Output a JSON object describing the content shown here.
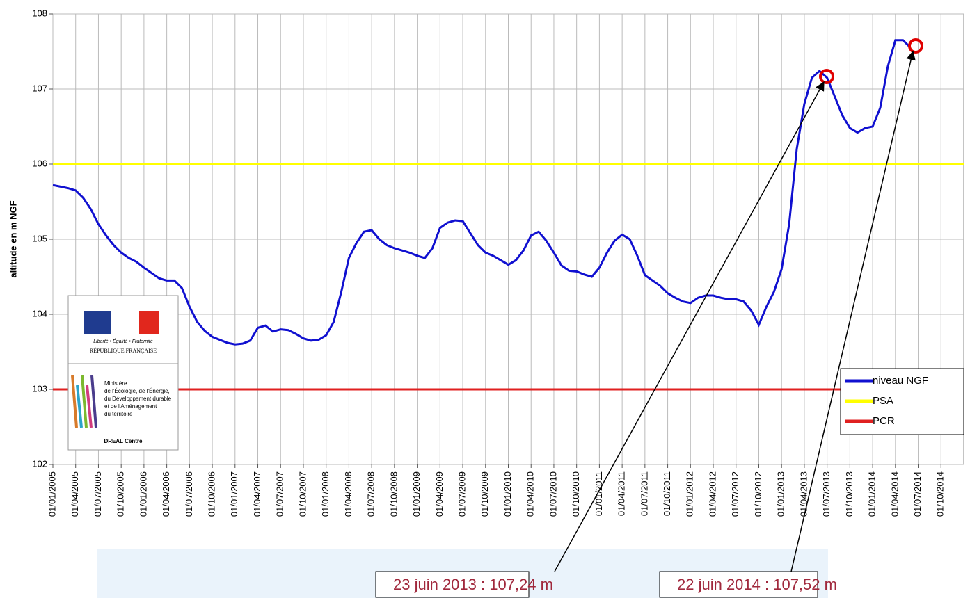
{
  "chart_data": {
    "type": "line",
    "ylabel": "altitude en m NGF",
    "ylim": [
      102,
      108
    ],
    "yticks": [
      102,
      103,
      104,
      105,
      106,
      107,
      108
    ],
    "xlim": [
      "01/01/2005",
      "01/01/2015"
    ],
    "xticks": [
      "01/01/2005",
      "01/04/2005",
      "01/07/2005",
      "01/10/2005",
      "01/01/2006",
      "01/04/2006",
      "01/07/2006",
      "01/10/2006",
      "01/01/2007",
      "01/04/2007",
      "01/07/2007",
      "01/10/2007",
      "01/01/2008",
      "01/04/2008",
      "01/07/2008",
      "01/10/2008",
      "01/01/2009",
      "01/04/2009",
      "01/07/2009",
      "01/10/2009",
      "01/01/2010",
      "01/04/2010",
      "01/07/2010",
      "01/10/2010",
      "01/01/2011",
      "01/04/2011",
      "01/07/2011",
      "01/10/2011",
      "01/01/2012",
      "01/04/2012",
      "01/07/2012",
      "01/10/2012",
      "01/01/2013",
      "01/04/2013",
      "01/07/2013",
      "01/10/2013",
      "01/01/2014",
      "01/04/2014",
      "01/07/2014",
      "01/10/2014"
    ],
    "grid": true,
    "legend": "lower right",
    "x": [
      "01/01/2005",
      "01/02/2005",
      "01/03/2005",
      "01/04/2005",
      "01/05/2005",
      "01/06/2005",
      "01/07/2005",
      "01/08/2005",
      "01/09/2005",
      "01/10/2005",
      "01/11/2005",
      "01/12/2005",
      "01/01/2006",
      "01/02/2006",
      "01/03/2006",
      "01/04/2006",
      "01/05/2006",
      "01/06/2006",
      "01/07/2006",
      "01/08/2006",
      "01/09/2006",
      "01/10/2006",
      "01/11/2006",
      "01/12/2006",
      "01/01/2007",
      "01/02/2007",
      "01/03/2007",
      "01/04/2007",
      "01/05/2007",
      "01/06/2007",
      "01/07/2007",
      "01/08/2007",
      "01/09/2007",
      "01/10/2007",
      "01/11/2007",
      "01/12/2007",
      "01/01/2008",
      "01/02/2008",
      "01/03/2008",
      "01/04/2008",
      "01/05/2008",
      "01/06/2008",
      "01/07/2008",
      "01/08/2008",
      "01/09/2008",
      "01/10/2008",
      "01/11/2008",
      "01/12/2008",
      "01/01/2009",
      "01/02/2009",
      "01/03/2009",
      "01/04/2009",
      "01/05/2009",
      "01/06/2009",
      "01/07/2009",
      "01/08/2009",
      "01/09/2009",
      "01/10/2009",
      "01/11/2009",
      "01/12/2009",
      "01/01/2010",
      "01/02/2010",
      "01/03/2010",
      "01/04/2010",
      "01/05/2010",
      "01/06/2010",
      "01/07/2010",
      "01/08/2010",
      "01/09/2010",
      "01/10/2010",
      "01/11/2010",
      "01/12/2010",
      "01/01/2011",
      "01/02/2011",
      "01/03/2011",
      "01/04/2011",
      "01/05/2011",
      "01/06/2011",
      "01/07/2011",
      "01/08/2011",
      "01/09/2011",
      "01/10/2011",
      "01/11/2011",
      "01/12/2011",
      "01/01/2012",
      "01/02/2012",
      "01/03/2012",
      "01/04/2012",
      "01/05/2012",
      "01/06/2012",
      "01/07/2012",
      "01/08/2012",
      "01/09/2012",
      "01/10/2012",
      "01/11/2012",
      "01/12/2012",
      "01/01/2013",
      "01/02/2013",
      "01/03/2013",
      "01/04/2013",
      "01/05/2013",
      "01/06/2013",
      "01/07/2013",
      "01/08/2013",
      "01/09/2013",
      "01/10/2013",
      "01/11/2013",
      "01/12/2013",
      "01/01/2014",
      "01/02/2014",
      "01/03/2014",
      "01/04/2014",
      "01/05/2014",
      "01/06/2014"
    ],
    "series": [
      {
        "name": "niveau NGF",
        "color": "#1010d0",
        "values": [
          105.72,
          105.7,
          105.68,
          105.65,
          105.55,
          105.4,
          105.2,
          105.05,
          104.92,
          104.82,
          104.75,
          104.7,
          104.62,
          104.55,
          104.48,
          104.45,
          104.45,
          104.35,
          104.1,
          103.9,
          103.78,
          103.7,
          103.66,
          103.62,
          103.6,
          103.61,
          103.65,
          103.82,
          103.85,
          103.77,
          103.8,
          103.79,
          103.74,
          103.68,
          103.65,
          103.66,
          103.72,
          103.9,
          104.3,
          104.75,
          104.95,
          105.1,
          105.12,
          105.0,
          104.92,
          104.88,
          104.85,
          104.82,
          104.78,
          104.75,
          104.88,
          105.15,
          105.22,
          105.25,
          105.24,
          105.08,
          104.92,
          104.82,
          104.78,
          104.72,
          104.66,
          104.72,
          104.85,
          105.05,
          105.1,
          104.98,
          104.82,
          104.65,
          104.58,
          104.57,
          104.53,
          104.5,
          104.62,
          104.82,
          104.98,
          105.06,
          105.0,
          104.78,
          104.52,
          104.45,
          104.38,
          104.28,
          104.22,
          104.17,
          104.15,
          104.22,
          104.25,
          104.25,
          104.22,
          104.2,
          104.2,
          104.17,
          104.05,
          103.86,
          104.1,
          104.3,
          104.6,
          105.2,
          106.2,
          106.8,
          107.15,
          107.24,
          107.15,
          106.9,
          106.65,
          106.48,
          106.42,
          106.48,
          106.5,
          106.75,
          107.3,
          107.65,
          107.65,
          107.55
        ]
      },
      {
        "name": "PSA",
        "color": "#ffff00",
        "value": 106
      },
      {
        "name": "PCR",
        "color": "#e02020",
        "value": 103
      }
    ],
    "annotations": [
      "23 juin 2013 : 107,24 m",
      "22 juin 2014 : 107,52 m"
    ],
    "logo": {
      "motto": "Liberté • Égalité • Fraternité",
      "republic": "RÉPUBLIQUE FRANÇAISE",
      "ministry": [
        "Ministère",
        "de l'Écologie, de l'Énergie,",
        "du Développement durable",
        "et de l'Aménagement",
        "du territoire"
      ],
      "office": "DREAL Centre"
    }
  }
}
